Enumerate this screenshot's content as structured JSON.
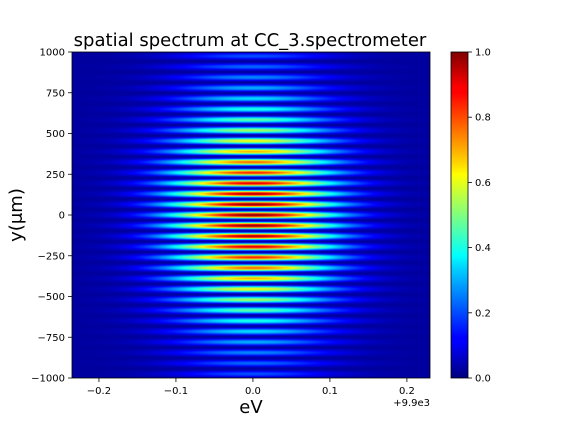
{
  "chart_data": {
    "type": "heatmap",
    "title": "spatial spectrum at CC_3.spectrometer",
    "xlabel": "eV",
    "ylabel": "y(μm)",
    "x_offset_label": "+9.9e3",
    "xlim": [
      -0.235,
      0.23
    ],
    "ylim": [
      -1000,
      1000
    ],
    "x_ticks": [
      {
        "value": -0.2,
        "label": "−0.2"
      },
      {
        "value": -0.1,
        "label": "−0.1"
      },
      {
        "value": 0.0,
        "label": "0.0"
      },
      {
        "value": 0.1,
        "label": "0.1"
      },
      {
        "value": 0.2,
        "label": "0.2"
      }
    ],
    "y_ticks": [
      {
        "value": 1000,
        "label": "1000"
      },
      {
        "value": 750,
        "label": "750"
      },
      {
        "value": 500,
        "label": "500"
      },
      {
        "value": 250,
        "label": "250"
      },
      {
        "value": 0,
        "label": "0"
      },
      {
        "value": -250,
        "label": "−250"
      },
      {
        "value": -500,
        "label": "−500"
      },
      {
        "value": -750,
        "label": "−750"
      },
      {
        "value": -1000,
        "label": "−1000"
      }
    ],
    "colorbar": {
      "colormap": "jet",
      "range": [
        0.0,
        1.0
      ],
      "ticks": [
        {
          "value": 1.0,
          "label": "1.0"
        },
        {
          "value": 0.8,
          "label": "0.8"
        },
        {
          "value": 0.6,
          "label": "0.6"
        },
        {
          "value": 0.4,
          "label": "0.4"
        },
        {
          "value": 0.2,
          "label": "0.2"
        },
        {
          "value": 0.0,
          "label": "0.0"
        }
      ]
    },
    "field": {
      "fringe_period_um": 65,
      "y_envelope_sigma_um": 420,
      "energy_center_eV": 0.0,
      "energy_sigma_eV": 0.075
    }
  }
}
